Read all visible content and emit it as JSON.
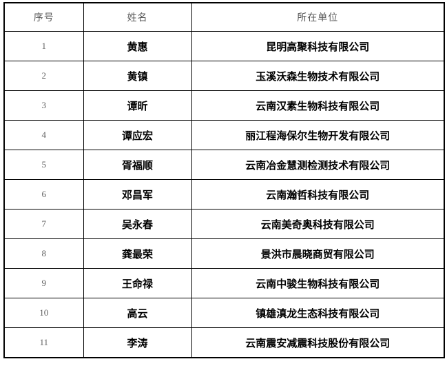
{
  "table": {
    "headers": [
      "序号",
      "姓名",
      "所在单位"
    ],
    "rows": [
      {
        "index": "1",
        "name": "黄惠",
        "org": "昆明高聚科技有限公司"
      },
      {
        "index": "2",
        "name": "黄镇",
        "org": "玉溪沃森生物技术有限公司"
      },
      {
        "index": "3",
        "name": "谭昕",
        "org": "云南汉素生物科技有限公司"
      },
      {
        "index": "4",
        "name": "谭应宏",
        "org": "丽江程海保尔生物开发有限公司"
      },
      {
        "index": "5",
        "name": "胥福顺",
        "org": "云南冶金慧测检测技术有限公司"
      },
      {
        "index": "6",
        "name": "邓昌军",
        "org": "云南瀚哲科技有限公司"
      },
      {
        "index": "7",
        "name": "吴永春",
        "org": "云南美奇奥科技有限公司"
      },
      {
        "index": "8",
        "name": "龚最荣",
        "org": "景洪市晨晓商贸有限公司"
      },
      {
        "index": "9",
        "name": "王命禄",
        "org": "云南中骏生物科技有限公司"
      },
      {
        "index": "10",
        "name": "高云",
        "org": "镇雄滇龙生态科技有限公司"
      },
      {
        "index": "11",
        "name": "李涛",
        "org": "云南震安减震科技股份有限公司"
      }
    ]
  },
  "palette": {
    "page_background": "#ffffff",
    "table_border": "#000000",
    "header_text": "#5a5a5a",
    "index_text": "#606060",
    "body_text": "#000000"
  }
}
